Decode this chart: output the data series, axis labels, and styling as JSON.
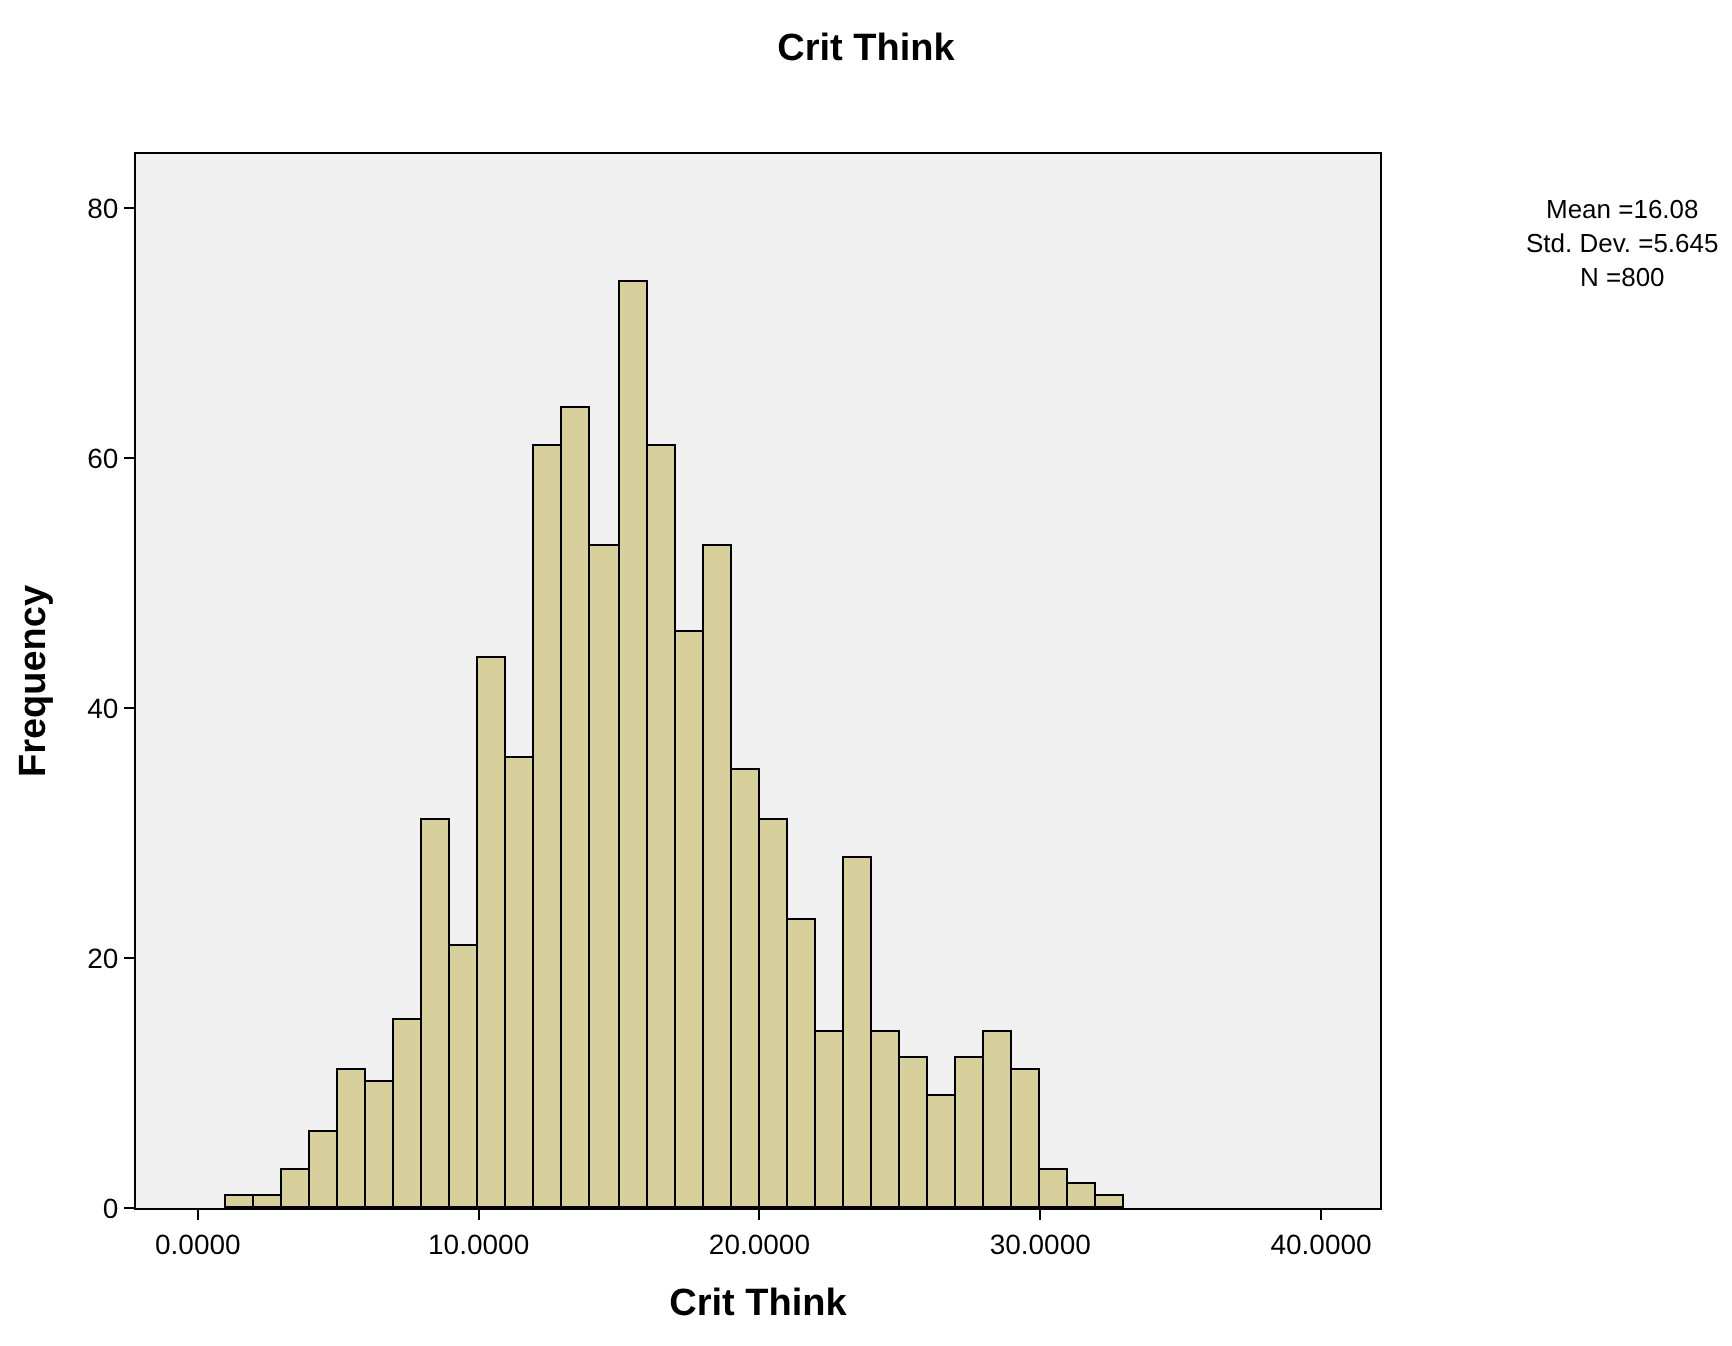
{
  "chart_data": {
    "type": "histogram",
    "title": "Crit Think",
    "xlabel": "Crit Think",
    "ylabel": "Frequency",
    "bins": [
      1,
      2,
      3,
      4,
      5,
      6,
      7,
      8,
      9,
      10,
      11,
      12,
      13,
      14,
      15,
      16,
      17,
      18,
      19,
      20,
      21,
      22,
      23,
      24,
      25,
      26,
      27,
      28,
      29,
      30,
      31,
      32,
      33
    ],
    "values": [
      1,
      1,
      3,
      6,
      11,
      10,
      15,
      31,
      21,
      44,
      36,
      61,
      64,
      53,
      74,
      61,
      46,
      53,
      35,
      31,
      23,
      14,
      28,
      14,
      12,
      9,
      12,
      14,
      11,
      3,
      2,
      1
    ],
    "color": "#d7d09d",
    "xlim": [
      -2.2,
      42.1
    ],
    "xticks": [
      {
        "value": 0,
        "label": "0.0000"
      },
      {
        "value": 10,
        "label": "10.0000"
      },
      {
        "value": 20,
        "label": "20.0000"
      },
      {
        "value": 30,
        "label": "30.0000"
      },
      {
        "value": 40,
        "label": "40.0000"
      }
    ],
    "ylim": [
      0,
      84.3
    ],
    "yticks": [
      0,
      20,
      40,
      60,
      80
    ],
    "grid": false,
    "annotations": [
      "Mean =16.08",
      "Std. Dev. =5.645",
      "N =800"
    ]
  }
}
